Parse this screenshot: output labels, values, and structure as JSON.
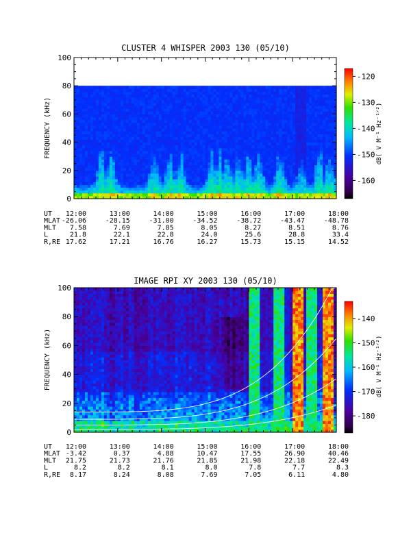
{
  "chart_data": [
    {
      "type": "heatmap",
      "title": "CLUSTER 4 WHISPER 2003 130 (05/10)",
      "ylabel": "FREQUENCY (kHz)",
      "ylim": [
        0,
        100
      ],
      "yticks": [
        "0",
        "20",
        "40",
        "60",
        "80",
        "100"
      ],
      "yticks_values": [
        0,
        20,
        40,
        60,
        80,
        100
      ],
      "data_ceiling_khz": 80,
      "colorbar": {
        "label": "dB( V M⁻¹ Hz⁻¹ᐟ²)",
        "range": [
          -167,
          -117
        ],
        "ticks": [
          "-120",
          "-130",
          "-140",
          "-150",
          "-160"
        ],
        "ticks_values": [
          -120,
          -130,
          -140,
          -150,
          -160
        ]
      },
      "xaxis_table": {
        "row_labels": [
          "UT",
          "MLAT",
          "MLT",
          "L",
          "R,RE"
        ],
        "columns": [
          "12:00",
          "13:00",
          "14:00",
          "15:00",
          "16:00",
          "17:00",
          "18:00"
        ],
        "rows": [
          [
            "12:00",
            "13:00",
            "14:00",
            "15:00",
            "16:00",
            "17:00",
            "18:00"
          ],
          [
            "-26.06",
            "-28.15",
            "-31.00",
            "-34.52",
            "-38.72",
            "-43.47",
            "-48.78"
          ],
          [
            "7.58",
            "7.69",
            "7.85",
            "8.05",
            "8.27",
            "8.51",
            "8.76"
          ],
          [
            "21.8",
            "22.1",
            "22.8",
            "24.0",
            "25.6",
            "28.8",
            "33.4"
          ],
          [
            "17.62",
            "17.21",
            "16.76",
            "16.27",
            "15.73",
            "15.15",
            "14.52"
          ]
        ]
      }
    },
    {
      "type": "heatmap",
      "title": "IMAGE RPI XY 2003 130 (05/10)",
      "ylabel": "FREQUENCY (kHz)",
      "ylim": [
        0,
        100
      ],
      "yticks": [
        "0",
        "20",
        "40",
        "60",
        "80",
        "100"
      ],
      "yticks_values": [
        0,
        20,
        40,
        60,
        80,
        100
      ],
      "colorbar": {
        "label": "dB( V M⁻¹ Hz⁻¹ᐟ²)",
        "range": [
          -187,
          -133
        ],
        "ticks": [
          "-140",
          "-150",
          "-160",
          "-170",
          "-180"
        ],
        "ticks_values": [
          -140,
          -150,
          -160,
          -170,
          -180
        ]
      },
      "xaxis_table": {
        "row_labels": [
          "UT",
          "MLAT",
          "MLT",
          "L",
          "R,RE"
        ],
        "columns": [
          "12:00",
          "13:00",
          "14:00",
          "15:00",
          "16:00",
          "17:00",
          "18:00"
        ],
        "rows": [
          [
            "12:00",
            "13:00",
            "14:00",
            "15:00",
            "16:00",
            "17:00",
            "18:00"
          ],
          [
            "-3.42",
            "0.37",
            "4.88",
            "10.47",
            "17.55",
            "26.90",
            "40.46"
          ],
          [
            "21.75",
            "21.73",
            "21.76",
            "21.85",
            "21.98",
            "22.18",
            "22.49"
          ],
          [
            "8.2",
            "8.2",
            "8.1",
            "8.0",
            "7.8",
            "7.7",
            "8.3"
          ],
          [
            "8.17",
            "8.24",
            "8.08",
            "7.69",
            "7.05",
            "6.11",
            "4.80"
          ]
        ]
      }
    }
  ]
}
